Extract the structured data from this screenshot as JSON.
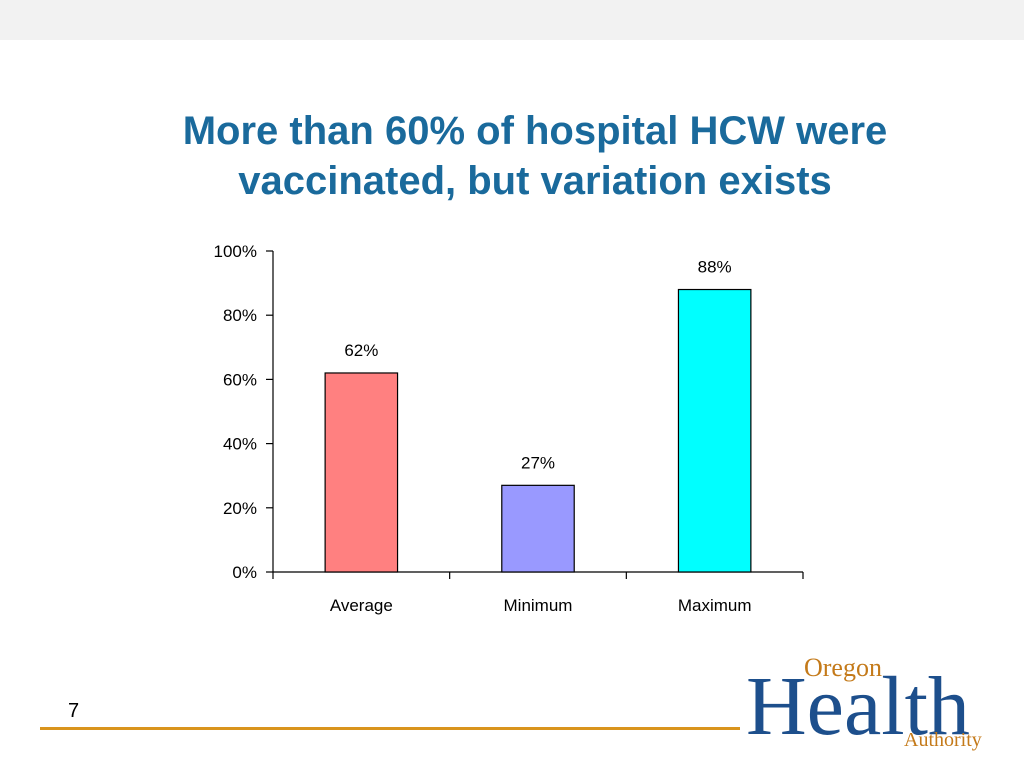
{
  "slide": {
    "title_line1": "More than 60% of hospital HCW were",
    "title_line2": "vaccinated, but variation exists",
    "page_number": "7"
  },
  "logo": {
    "word1": "Oregon",
    "word2": "Health",
    "word3": "Authority",
    "colors": {
      "health": "#1d4f8c",
      "oregon": "#c47a1a",
      "rule": "#d9941c"
    }
  },
  "chart_data": {
    "type": "bar",
    "categories": [
      "Average",
      "Minimum",
      "Maximum"
    ],
    "values": [
      62,
      27,
      88
    ],
    "value_labels": [
      "62%",
      "27%",
      "88%"
    ],
    "colors": [
      "#ff8080",
      "#9999ff",
      "#00ffff"
    ],
    "ylim": [
      0,
      100
    ],
    "yticks": [
      0,
      20,
      40,
      60,
      80,
      100
    ],
    "ytick_labels": [
      "0%",
      "20%",
      "40%",
      "60%",
      "80%",
      "100%"
    ],
    "grid": false,
    "legend": "none"
  }
}
